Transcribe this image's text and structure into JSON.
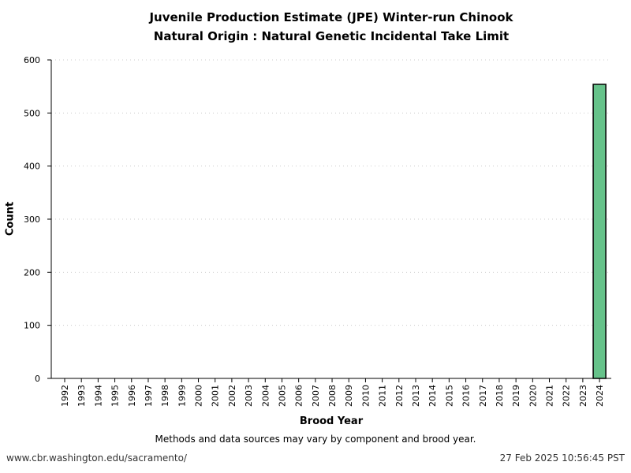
{
  "chart_data": {
    "type": "bar",
    "title": [
      "Juvenile Production Estimate (JPE) Winter-run Chinook",
      "Natural Origin : Natural Genetic Incidental Take Limit"
    ],
    "xlabel": "Brood Year",
    "ylabel": "Count",
    "ylim": [
      0,
      600
    ],
    "yticks": [
      0,
      100,
      200,
      300,
      400,
      500,
      600
    ],
    "grid": true,
    "categories": [
      "1992",
      "1993",
      "1994",
      "1995",
      "1996",
      "1997",
      "1998",
      "1999",
      "2000",
      "2001",
      "2002",
      "2003",
      "2004",
      "2005",
      "2006",
      "2007",
      "2008",
      "2009",
      "2010",
      "2011",
      "2012",
      "2013",
      "2014",
      "2015",
      "2016",
      "2017",
      "2018",
      "2019",
      "2020",
      "2021",
      "2022",
      "2023",
      "2024"
    ],
    "values": [
      null,
      null,
      null,
      null,
      null,
      null,
      null,
      null,
      null,
      null,
      null,
      null,
      null,
      null,
      null,
      null,
      null,
      null,
      null,
      null,
      null,
      null,
      null,
      null,
      null,
      null,
      null,
      null,
      null,
      null,
      null,
      null,
      554
    ],
    "bar_color": "#66c28a"
  },
  "footer": {
    "note": "Methods and data sources may vary by component and brood year.",
    "url": "www.cbr.washington.edu/sacramento/",
    "timestamp": "27 Feb 2025 10:56:45 PST"
  }
}
